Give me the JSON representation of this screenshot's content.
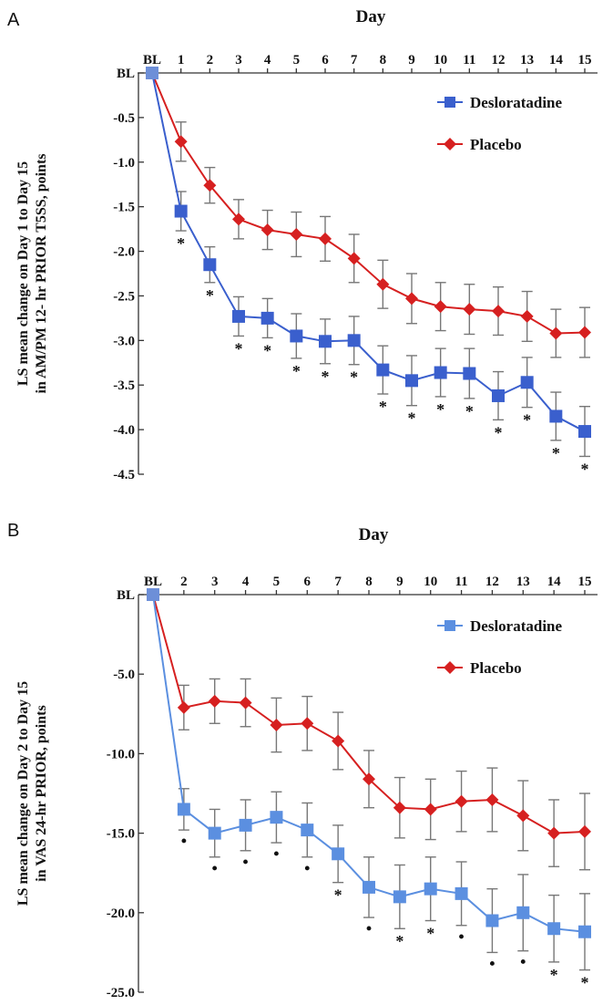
{
  "chart_data": [
    {
      "panel_label": "A",
      "type": "line",
      "xlabel": "Day",
      "ylabel_lines": [
        "LS mean change on Day 1 to Day 15",
        "in AM/PM 12- hr PRIOR T5SS, points"
      ],
      "categories": [
        "BL",
        "1",
        "2",
        "3",
        "4",
        "5",
        "6",
        "7",
        "8",
        "9",
        "10",
        "11",
        "12",
        "13",
        "14",
        "15"
      ],
      "yticks": [
        0,
        -0.5,
        -1.0,
        -1.5,
        -2.0,
        -2.5,
        -3.0,
        -3.5,
        -4.0,
        -4.5
      ],
      "ytick_labels": [
        "BL",
        "-0.5",
        "-1.0",
        "-1.5",
        "-2.0",
        "-2.5",
        "-3.0",
        "-3.5",
        "-4.0",
        "-4.5"
      ],
      "ylim": [
        -4.5,
        0
      ],
      "legend_position": "top-right",
      "series": [
        {
          "name": "Desloratadine",
          "color": "#3a5fcd",
          "marker": "square",
          "values": [
            0,
            -1.55,
            -2.15,
            -2.73,
            -2.75,
            -2.95,
            -3.01,
            -3.0,
            -3.33,
            -3.45,
            -3.36,
            -3.37,
            -3.62,
            -3.47,
            -3.85,
            -4.02
          ],
          "errors": [
            0,
            0.22,
            0.2,
            0.22,
            0.22,
            0.25,
            0.25,
            0.27,
            0.27,
            0.28,
            0.27,
            0.28,
            0.27,
            0.28,
            0.27,
            0.28
          ],
          "significance": [
            "",
            "*",
            "*",
            "*",
            "*",
            "*",
            "*",
            "*",
            "*",
            "*",
            "*",
            "*",
            "*",
            "*",
            "*",
            "*"
          ]
        },
        {
          "name": "Placebo",
          "color": "#d62020",
          "marker": "diamond",
          "values": [
            0,
            -0.77,
            -1.26,
            -1.64,
            -1.76,
            -1.81,
            -1.86,
            -2.08,
            -2.37,
            -2.53,
            -2.62,
            -2.65,
            -2.67,
            -2.73,
            -2.92,
            -2.91
          ],
          "errors": [
            0,
            0.22,
            0.2,
            0.22,
            0.22,
            0.25,
            0.25,
            0.27,
            0.27,
            0.28,
            0.27,
            0.28,
            0.27,
            0.28,
            0.27,
            0.28
          ]
        }
      ]
    },
    {
      "panel_label": "B",
      "type": "line",
      "xlabel": "Day",
      "ylabel_lines": [
        "LS mean change on Day 2 to Day 15",
        "in VAS 24-hr PRIOR, points"
      ],
      "categories": [
        "BL",
        "2",
        "3",
        "4",
        "5",
        "6",
        "7",
        "8",
        "9",
        "10",
        "11",
        "12",
        "13",
        "14",
        "15"
      ],
      "yticks": [
        0,
        -5,
        -10,
        -15,
        -20,
        -25
      ],
      "ytick_labels": [
        "BL",
        "-5.0",
        "-10.0",
        "-15.0",
        "-20.0",
        "-25.0"
      ],
      "ylim": [
        -25,
        0
      ],
      "legend_position": "top-right",
      "series": [
        {
          "name": "Desloratadine",
          "color": "#5b8fe0",
          "marker": "square",
          "values": [
            0,
            -13.5,
            -15.0,
            -14.5,
            -14.0,
            -14.8,
            -16.3,
            -18.4,
            -19.0,
            -18.5,
            -18.8,
            -20.5,
            -20.0,
            -21.0,
            -21.2
          ],
          "errors": [
            0,
            1.3,
            1.5,
            1.6,
            1.6,
            1.7,
            1.8,
            1.9,
            2.0,
            2.0,
            2.0,
            2.0,
            2.4,
            2.1,
            2.4
          ],
          "significance": [
            "",
            "•",
            "•",
            "•",
            "•",
            "•",
            "*",
            "•",
            "*",
            "*",
            "•",
            "•",
            "•",
            "*",
            "*"
          ]
        },
        {
          "name": "Placebo",
          "color": "#d62020",
          "marker": "diamond",
          "values": [
            0,
            -7.1,
            -6.7,
            -6.8,
            -8.2,
            -8.1,
            -9.2,
            -11.6,
            -13.4,
            -13.5,
            -13.0,
            -12.9,
            -13.9,
            -15.0,
            -14.9
          ],
          "errors": [
            0,
            1.4,
            1.4,
            1.5,
            1.7,
            1.7,
            1.8,
            1.8,
            1.9,
            1.9,
            1.9,
            2.0,
            2.2,
            2.1,
            2.4
          ]
        }
      ]
    }
  ]
}
